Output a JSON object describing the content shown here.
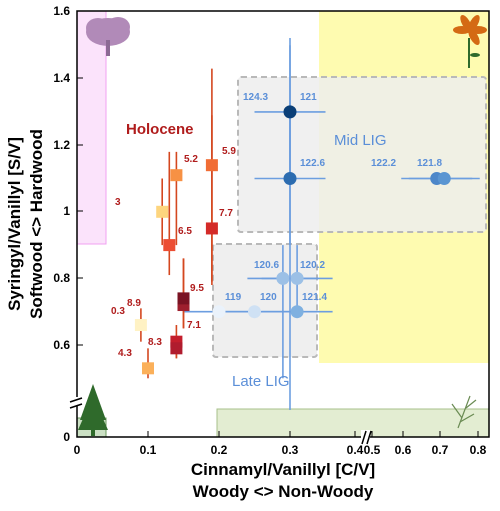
{
  "chart_data": {
    "type": "scatter",
    "xlabel_line1": "Cinnamyl/Vanillyl [C/V]",
    "xlabel_line2": "Woody <> Non-Woody",
    "ylabel_line1": "Syringyl/Vanillyl [S/V]",
    "ylabel_line2": "Softwood <> Hardwood",
    "xlim": [
      0,
      0.82
    ],
    "ylim": [
      0,
      1.6
    ],
    "x_axis_break": "between 0.4 and 0.6 (values right of the break shifted)",
    "y_axis_break": "between 0 and 0.5",
    "xticks": [
      "0",
      "0.1",
      "0.2",
      "0.3",
      "0.4",
      "0.5",
      "0.6",
      "0.7",
      "0.8"
    ],
    "yticks": [
      "0",
      "0.6",
      "0.8",
      "1",
      "1.2",
      "1.4",
      "1.6"
    ],
    "region_labels": {
      "holocene": "Holocene",
      "mid_lig": "Mid LIG",
      "late_lig": "Late LIG"
    },
    "holocene": [
      {
        "label": "0.3",
        "x": 0.09,
        "y": 0.66,
        "ylo": 0.61,
        "yhi": 0.71,
        "color": "#fff2c4"
      },
      {
        "label": "3",
        "x": 0.12,
        "y": 1.0,
        "ylo": 0.9,
        "yhi": 1.1,
        "color": "#fdd57e"
      },
      {
        "label": "4.3",
        "x": 0.1,
        "y": 0.53,
        "ylo": 0.5,
        "yhi": 0.59,
        "color": "#fbb05a"
      },
      {
        "label": "5.2",
        "x": 0.14,
        "y": 1.11,
        "ylo": 0.9,
        "yhi": 1.18,
        "color": "#f79144"
      },
      {
        "label": "5.9",
        "x": 0.19,
        "y": 1.14,
        "ylo": 0.79,
        "yhi": 1.29,
        "color": "#f16d35"
      },
      {
        "label": "6.5",
        "x": 0.13,
        "y": 0.9,
        "ylo": 0.81,
        "yhi": 1.18,
        "color": "#ec4d33"
      },
      {
        "label": "7.7",
        "x": 0.19,
        "y": 0.95,
        "ylo": 0.78,
        "yhi": 1.43,
        "color": "#d42b28"
      },
      {
        "label": "8.3",
        "x": 0.14,
        "y": 0.61,
        "ylo": 0.56,
        "yhi": 0.66,
        "color": "#c41e2c"
      },
      {
        "label": "8.9",
        "x": 0.15,
        "y": 0.72,
        "ylo": 0.65,
        "yhi": 0.86,
        "color": "#9e1f2e"
      },
      {
        "label": "7.1",
        "x": 0.14,
        "y": 0.59,
        "ylo": 0.56,
        "yhi": 0.62,
        "color": "#b01c2e"
      },
      {
        "label": "9.5",
        "x": 0.15,
        "y": 0.74,
        "ylo": 0.65,
        "yhi": 0.86,
        "color": "#7a1323"
      }
    ],
    "lig": [
      {
        "label": "124.3",
        "x": 0.3,
        "y": 1.3,
        "xerr": 0.05,
        "yerr_lo": 0.2,
        "yerr_hi": 0.2,
        "color": "#0b3f77"
      },
      {
        "label": "122.6",
        "x": 0.3,
        "y": 1.1,
        "xerr": 0.05,
        "yerr_lo": 0.2,
        "yerr_hi": 0.2,
        "color": "#2c6cb0"
      },
      {
        "label": "121",
        "x": 0.3,
        "y": 1.3,
        "color": "#0b3f77",
        "label_only": true
      },
      {
        "label": "122.2",
        "x": 0.69,
        "y": 1.1,
        "xerr": 0.05,
        "yerr_lo": 0.0,
        "yerr_hi": 0.0,
        "color": "#4d87c9"
      },
      {
        "label": "121.8",
        "x": 0.71,
        "y": 1.1,
        "xerr": 0.05,
        "yerr_lo": 0.0,
        "yerr_hi": 0.0,
        "color": "#5a95d2"
      },
      {
        "label": "120.6",
        "x": 0.29,
        "y": 0.8,
        "xerr": 0.05,
        "yerr_lo": 0.3,
        "yerr_hi": 0.1,
        "color": "#9cc0e6"
      },
      {
        "label": "120.2",
        "x": 0.31,
        "y": 0.8,
        "xerr": 0.05,
        "yerr_lo": 0.1,
        "yerr_hi": 0.1,
        "color": "#9cc0e6"
      },
      {
        "label": "119",
        "x": 0.2,
        "y": 0.7,
        "xerr": 0.05,
        "yerr_lo": 0.0,
        "yerr_hi": 0.0,
        "color": "#eaf2fb"
      },
      {
        "label": "120",
        "x": 0.25,
        "y": 0.7,
        "xerr": 0.05,
        "yerr_lo": 0.0,
        "yerr_hi": 0.0,
        "color": "#cfe1f4"
      },
      {
        "label": "121.4",
        "x": 0.31,
        "y": 0.7,
        "xerr": 0.05,
        "yerr_lo": 0.0,
        "yerr_hi": 0.0,
        "color": "#7fb0e0"
      }
    ],
    "colors": {
      "holocene_text": "#b01c1c",
      "lig_text": "#5b8fd8",
      "hardwood_fill": "#fbe3fb",
      "nonwoody_fill": "#fefbb0",
      "softwood_fill": "#cbe0c4",
      "grass_fill": "#e3edd2",
      "lig_box_fill": "#efefef"
    }
  }
}
